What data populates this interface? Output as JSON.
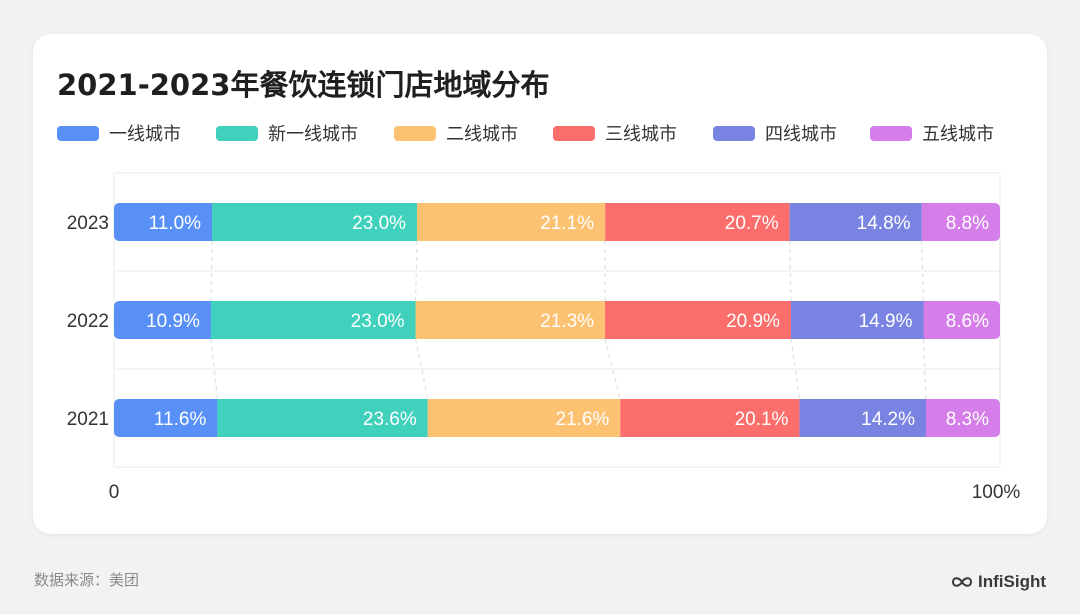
{
  "title": "2021-2023年餐饮连锁门店地域分布",
  "source": "数据来源：美团",
  "brand": "InfiSight",
  "brand_icon": "infinity-icon",
  "chart_data": {
    "type": "bar",
    "orientation": "horizontal",
    "stacked": true,
    "normalized": true,
    "categories": [
      "2023",
      "2022",
      "2021"
    ],
    "series": [
      {
        "name": "一线城市",
        "color": "#5890f8",
        "values": [
          11.0,
          10.9,
          11.6
        ],
        "labels": [
          "11.0%",
          "10.9%",
          "11.6%"
        ]
      },
      {
        "name": "新一线城市",
        "color": "#3fd1bc",
        "values": [
          23.0,
          23.0,
          23.6
        ],
        "labels": [
          "23.0%",
          "23.0%",
          "23.6%"
        ]
      },
      {
        "name": "二线城市",
        "color": "#fdc172",
        "values": [
          21.1,
          21.3,
          21.6
        ],
        "labels": [
          "21.1%",
          "21.3%",
          "21.6%"
        ]
      },
      {
        "name": "三线城市",
        "color": "#fc6e6b",
        "values": [
          20.7,
          20.9,
          20.1
        ],
        "labels": [
          "20.7%",
          "20.9%",
          "20.1%"
        ]
      },
      {
        "name": "四线城市",
        "color": "#7883e2",
        "values": [
          14.8,
          14.9,
          14.2
        ],
        "labels": [
          "14.8%",
          "14.9%",
          "14.2%"
        ]
      },
      {
        "name": "五线城市",
        "color": "#d57ee9",
        "values": [
          8.8,
          8.6,
          8.3
        ],
        "labels": [
          "8.8%",
          "8.6%",
          "8.3%"
        ]
      }
    ],
    "x_ticks": [
      "0",
      "100%"
    ],
    "xlim": [
      0,
      100
    ],
    "legend_position": "top-left",
    "grid": true,
    "connector_lines": true
  }
}
